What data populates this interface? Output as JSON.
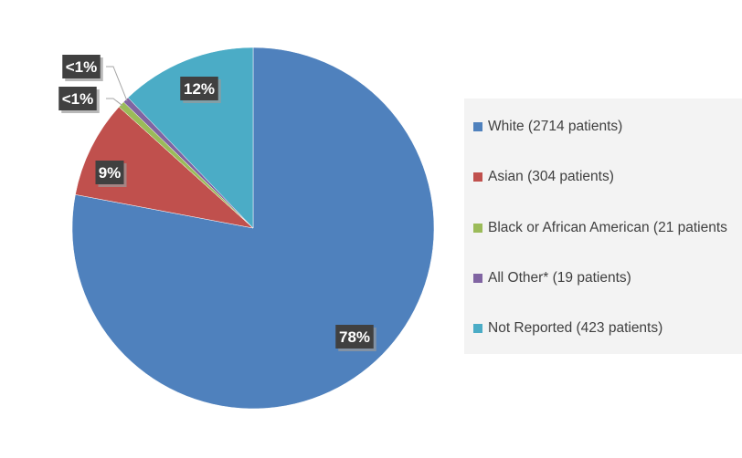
{
  "chart_data": {
    "type": "pie",
    "categories": [
      "White",
      "Asian",
      "Black or African American",
      "All Other*",
      "Not Reported"
    ],
    "values": [
      2714,
      304,
      21,
      19,
      423
    ],
    "colors": [
      "#4f81bd",
      "#c0504d",
      "#9bbb59",
      "#8064a2",
      "#4bacc6"
    ],
    "data_labels": [
      "78%",
      "9%",
      "<1%",
      "<1%",
      "12%"
    ],
    "legend": [
      "White (2714 patients)",
      "Asian (304 patients)",
      "Black or African American (21 patients",
      "All Other* (19 patients)",
      "Not Reported (423 patients)"
    ],
    "legend_position": "right",
    "start": "top",
    "direction": "clockwise"
  }
}
